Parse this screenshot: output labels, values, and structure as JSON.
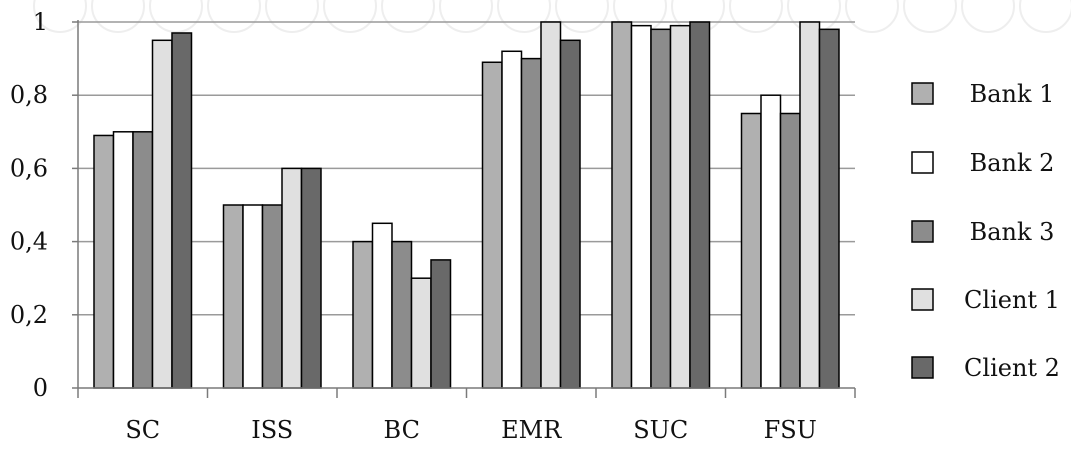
{
  "chart_data": {
    "type": "bar",
    "categories": [
      "SC",
      "ISS",
      "BC",
      "EMR",
      "SUC",
      "FSU"
    ],
    "series": [
      {
        "name": "Bank 1",
        "values": [
          0.69,
          0.5,
          0.4,
          0.89,
          1.0,
          0.75
        ],
        "color": "#b0b0b0"
      },
      {
        "name": "Bank 2",
        "values": [
          0.7,
          0.5,
          0.45,
          0.92,
          0.99,
          0.8
        ],
        "color": "#ffffff"
      },
      {
        "name": "Bank 3",
        "values": [
          0.7,
          0.5,
          0.4,
          0.9,
          0.98,
          0.75
        ],
        "color": "#8c8c8c"
      },
      {
        "name": "Client 1",
        "values": [
          0.95,
          0.6,
          0.3,
          1.0,
          0.99,
          1.0
        ],
        "color": "#e0e0e0"
      },
      {
        "name": "Client 2",
        "values": [
          0.97,
          0.6,
          0.35,
          0.95,
          1.0,
          0.98
        ],
        "color": "#696969"
      }
    ],
    "ylim": [
      0,
      1
    ],
    "yticks": [
      0,
      0.2,
      0.4,
      0.6,
      0.8,
      1
    ],
    "ytick_labels": [
      "0",
      "0,2",
      "0,4",
      "0,6",
      "0,8",
      "1"
    ],
    "title": "",
    "xlabel": "",
    "ylabel": "",
    "grid": "horizontal",
    "legend_position": "right"
  }
}
